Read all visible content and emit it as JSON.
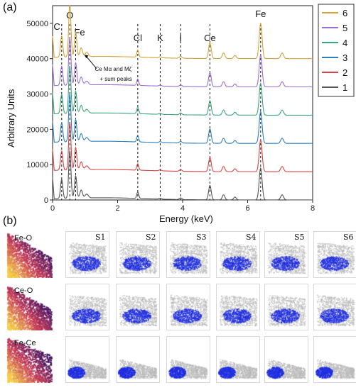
{
  "panel_a": {
    "panel_label": "(a)",
    "chart_data": {
      "type": "line",
      "xlabel": "Energy (keV)",
      "ylabel": "Arbitrary Units",
      "xlim": [
        0,
        8
      ],
      "ylim": [
        0,
        55000
      ],
      "xticks": [
        0,
        2,
        4,
        6,
        8
      ],
      "yticks": [
        0,
        10000,
        20000,
        30000,
        40000,
        50000
      ],
      "grid": false,
      "legend_position": "top-right",
      "series": [
        {
          "name": "6",
          "color": "#d4a437",
          "baseline": 40000,
          "scale": 1.0
        },
        {
          "name": "5",
          "color": "#9b6fd6",
          "baseline": 32000,
          "scale": 0.9
        },
        {
          "name": "4",
          "color": "#3aa47a",
          "baseline": 24000,
          "scale": 0.9
        },
        {
          "name": "3",
          "color": "#2c7fc0",
          "baseline": 16000,
          "scale": 0.9
        },
        {
          "name": "2",
          "color": "#d64545",
          "baseline": 8000,
          "scale": 0.9
        },
        {
          "name": "1",
          "color": "#555555",
          "baseline": 0,
          "scale": 0.9
        }
      ],
      "peaks": [
        {
          "energy": 0.28,
          "height": 6000,
          "width": 0.035
        },
        {
          "energy": 0.53,
          "height": 15000,
          "width": 0.035
        },
        {
          "energy": 0.71,
          "height": 7000,
          "width": 0.035
        },
        {
          "energy": 0.88,
          "height": 2500,
          "width": 0.04
        },
        {
          "energy": 1.05,
          "height": 1200,
          "width": 0.05
        },
        {
          "energy": 2.62,
          "height": 2000,
          "width": 0.03
        },
        {
          "energy": 3.31,
          "height": 300,
          "width": 0.04
        },
        {
          "energy": 3.94,
          "height": 500,
          "width": 0.04
        },
        {
          "energy": 4.84,
          "height": 4500,
          "width": 0.04
        },
        {
          "energy": 5.26,
          "height": 1600,
          "width": 0.04
        },
        {
          "energy": 5.61,
          "height": 900,
          "width": 0.04
        },
        {
          "energy": 6.4,
          "height": 10000,
          "width": 0.045
        },
        {
          "energy": 7.06,
          "height": 1600,
          "width": 0.045
        }
      ],
      "element_lines": [
        {
          "label": "C",
          "energy": 0.28
        },
        {
          "label": "O",
          "energy": 0.53
        },
        {
          "label": "Fe",
          "energy": 0.71
        },
        {
          "label": "Cl",
          "energy": 2.62
        },
        {
          "label": "K",
          "energy": 3.31
        },
        {
          "label": "I",
          "energy": 3.94
        },
        {
          "label": "Ce",
          "energy": 4.84
        },
        {
          "label": "Fe",
          "energy": 6.4
        }
      ],
      "annotations": [
        {
          "text_line1": "Ce Mα and Mζ",
          "text_line2": "+ sum peaks",
          "arrow_to_energy": 0.95
        }
      ]
    }
  },
  "panel_b": {
    "panel_label": "(b)",
    "rows": [
      {
        "pair": "Fe-O"
      },
      {
        "pair": "Ce-O"
      },
      {
        "pair": "Fe-Ce"
      }
    ],
    "columns": [
      "S1",
      "S2",
      "S3",
      "S4",
      "S5",
      "S6"
    ],
    "colors": {
      "heat_low": "#3b1060",
      "heat_mid": "#c83b5a",
      "heat_high": "#f5d24a",
      "blue": "#1f2ee0",
      "gray": "#b9b9b9"
    }
  }
}
